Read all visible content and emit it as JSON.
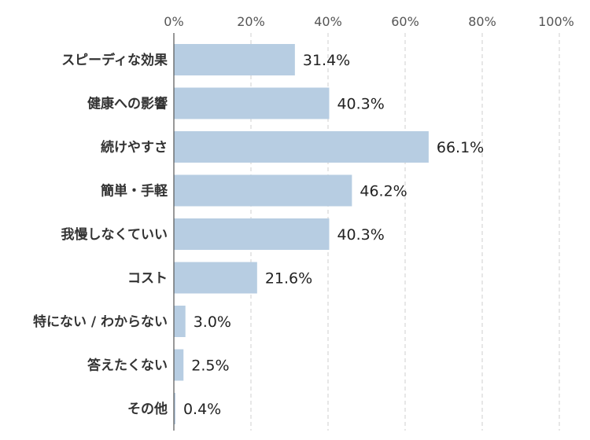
{
  "chart_data": {
    "type": "bar",
    "orientation": "horizontal",
    "categories": [
      "スピーディな効果",
      "健康への影響",
      "続けやすさ",
      "簡単・手軽",
      "我慢しなくていい",
      "コスト",
      "特にない / わからない",
      "答えたくない",
      "その他"
    ],
    "values": [
      31.4,
      40.3,
      66.1,
      46.2,
      40.3,
      21.6,
      3.0,
      2.5,
      0.4
    ],
    "value_labels": [
      "31.4%",
      "40.3%",
      "66.1%",
      "46.2%",
      "40.3%",
      "21.6%",
      "3.0%",
      "2.5%",
      "0.4%"
    ],
    "xlim": [
      0,
      100
    ],
    "x_ticks": [
      0,
      20,
      40,
      60,
      80,
      100
    ],
    "x_tick_labels": [
      "0%",
      "20%",
      "40%",
      "60%",
      "80%",
      "100%"
    ],
    "tick_position": "top",
    "grid": true,
    "colors": {
      "bar": "#b7cde2"
    }
  }
}
